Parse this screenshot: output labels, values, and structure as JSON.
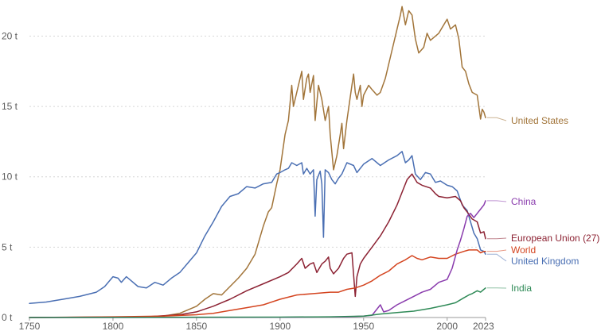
{
  "chart_data": {
    "type": "line",
    "title": "",
    "xlabel": "",
    "ylabel": "",
    "xlim": [
      1750,
      2023
    ],
    "ylim": [
      0,
      22
    ],
    "x_ticks": [
      {
        "value": 1750,
        "label": "1750"
      },
      {
        "value": 1800,
        "label": "1800"
      },
      {
        "value": 1850,
        "label": "1850"
      },
      {
        "value": 1900,
        "label": "1900"
      },
      {
        "value": 1950,
        "label": "1950"
      },
      {
        "value": 2000,
        "label": "2000"
      },
      {
        "value": 2023,
        "label": "2023"
      }
    ],
    "y_ticks": [
      {
        "value": 0,
        "label": "0 t"
      },
      {
        "value": 5,
        "label": "5 t"
      },
      {
        "value": 10,
        "label": "10 t"
      },
      {
        "value": 15,
        "label": "15 t"
      },
      {
        "value": 20,
        "label": "20 t"
      }
    ],
    "grid": "horizontal",
    "legend": "inline-right",
    "series": [
      {
        "name": "United States",
        "color": "#a2753a",
        "points": [
          [
            1800,
            0.02
          ],
          [
            1820,
            0.05
          ],
          [
            1830,
            0.1
          ],
          [
            1840,
            0.3
          ],
          [
            1850,
            0.8
          ],
          [
            1855,
            1.3
          ],
          [
            1860,
            1.7
          ],
          [
            1865,
            1.6
          ],
          [
            1870,
            2.2
          ],
          [
            1875,
            2.8
          ],
          [
            1880,
            3.5
          ],
          [
            1885,
            4.5
          ],
          [
            1890,
            6.5
          ],
          [
            1893,
            7.5
          ],
          [
            1895,
            7.8
          ],
          [
            1898,
            9.5
          ],
          [
            1900,
            10.5
          ],
          [
            1903,
            13
          ],
          [
            1905,
            14
          ],
          [
            1907,
            16.5
          ],
          [
            1908,
            15
          ],
          [
            1910,
            16
          ],
          [
            1913,
            17.5
          ],
          [
            1914,
            15.5
          ],
          [
            1916,
            17
          ],
          [
            1917,
            17.3
          ],
          [
            1918,
            16
          ],
          [
            1920,
            17.2
          ],
          [
            1921,
            14
          ],
          [
            1923,
            16.5
          ],
          [
            1925,
            15.5
          ],
          [
            1927,
            14
          ],
          [
            1929,
            15
          ],
          [
            1930,
            13
          ],
          [
            1932,
            10.5
          ],
          [
            1934,
            11.5
          ],
          [
            1936,
            13
          ],
          [
            1937,
            13.8
          ],
          [
            1938,
            12
          ],
          [
            1940,
            14
          ],
          [
            1943,
            16.5
          ],
          [
            1944,
            17.3
          ],
          [
            1945,
            16
          ],
          [
            1946,
            15.5
          ],
          [
            1948,
            16.5
          ],
          [
            1949,
            15
          ],
          [
            1950,
            15.8
          ],
          [
            1953,
            16.5
          ],
          [
            1955,
            16.2
          ],
          [
            1958,
            15.8
          ],
          [
            1960,
            16
          ],
          [
            1963,
            17
          ],
          [
            1966,
            18.5
          ],
          [
            1970,
            20.5
          ],
          [
            1972,
            21.5
          ],
          [
            1973,
            22.1
          ],
          [
            1975,
            20.8
          ],
          [
            1977,
            21.8
          ],
          [
            1979,
            21.5
          ],
          [
            1981,
            19.8
          ],
          [
            1983,
            18.8
          ],
          [
            1986,
            19.2
          ],
          [
            1988,
            20.2
          ],
          [
            1990,
            19.7
          ],
          [
            1995,
            20.2
          ],
          [
            1998,
            20.8
          ],
          [
            2000,
            21.2
          ],
          [
            2002,
            20.5
          ],
          [
            2005,
            20.8
          ],
          [
            2007,
            19.8
          ],
          [
            2009,
            17.8
          ],
          [
            2011,
            17.5
          ],
          [
            2013,
            16.6
          ],
          [
            2015,
            16
          ],
          [
            2018,
            15.8
          ],
          [
            2020,
            14.1
          ],
          [
            2021,
            14.8
          ],
          [
            2022,
            14.6
          ],
          [
            2023,
            14.2
          ]
        ]
      },
      {
        "name": "United Kingdom",
        "color": "#4a6fb3",
        "points": [
          [
            1750,
            1
          ],
          [
            1760,
            1.1
          ],
          [
            1770,
            1.3
          ],
          [
            1780,
            1.5
          ],
          [
            1790,
            1.8
          ],
          [
            1795,
            2.2
          ],
          [
            1800,
            2.9
          ],
          [
            1803,
            2.8
          ],
          [
            1805,
            2.5
          ],
          [
            1808,
            2.9
          ],
          [
            1810,
            2.7
          ],
          [
            1815,
            2.2
          ],
          [
            1820,
            2.1
          ],
          [
            1825,
            2.5
          ],
          [
            1830,
            2.3
          ],
          [
            1835,
            2.8
          ],
          [
            1840,
            3.2
          ],
          [
            1845,
            3.9
          ],
          [
            1850,
            4.6
          ],
          [
            1855,
            5.8
          ],
          [
            1860,
            6.8
          ],
          [
            1865,
            7.9
          ],
          [
            1870,
            8.6
          ],
          [
            1875,
            8.8
          ],
          [
            1880,
            9.3
          ],
          [
            1885,
            9.2
          ],
          [
            1890,
            9.5
          ],
          [
            1895,
            9.6
          ],
          [
            1898,
            10.2
          ],
          [
            1900,
            10.3
          ],
          [
            1903,
            10.5
          ],
          [
            1905,
            10.6
          ],
          [
            1907,
            11
          ],
          [
            1910,
            10.8
          ],
          [
            1913,
            11
          ],
          [
            1914,
            10.2
          ],
          [
            1916,
            10.6
          ],
          [
            1918,
            10.2
          ],
          [
            1920,
            10.5
          ],
          [
            1921,
            7.2
          ],
          [
            1922,
            9.8
          ],
          [
            1924,
            10.4
          ],
          [
            1925,
            9.5
          ],
          [
            1926,
            5.7
          ],
          [
            1927,
            10.5
          ],
          [
            1929,
            10.3
          ],
          [
            1931,
            9.8
          ],
          [
            1933,
            9.5
          ],
          [
            1935,
            9.9
          ],
          [
            1937,
            10.2
          ],
          [
            1940,
            11
          ],
          [
            1944,
            10.8
          ],
          [
            1946,
            10.3
          ],
          [
            1950,
            10.9
          ],
          [
            1955,
            11.3
          ],
          [
            1960,
            10.8
          ],
          [
            1965,
            11.2
          ],
          [
            1970,
            11.5
          ],
          [
            1973,
            11.8
          ],
          [
            1975,
            11
          ],
          [
            1977,
            11.2
          ],
          [
            1979,
            11.5
          ],
          [
            1981,
            10.2
          ],
          [
            1984,
            9.8
          ],
          [
            1987,
            10.3
          ],
          [
            1990,
            10.2
          ],
          [
            1993,
            9.6
          ],
          [
            1996,
            9.7
          ],
          [
            2000,
            9.4
          ],
          [
            2003,
            9.3
          ],
          [
            2006,
            9
          ],
          [
            2009,
            8
          ],
          [
            2012,
            7.6
          ],
          [
            2014,
            6.8
          ],
          [
            2016,
            6
          ],
          [
            2018,
            5.6
          ],
          [
            2020,
            4.8
          ],
          [
            2022,
            4.7
          ],
          [
            2023,
            4.5
          ]
        ]
      },
      {
        "name": "European Union (27)",
        "color": "#8c2233",
        "points": [
          [
            1750,
            0
          ],
          [
            1820,
            0.05
          ],
          [
            1840,
            0.2
          ],
          [
            1850,
            0.4
          ],
          [
            1860,
            0.8
          ],
          [
            1870,
            1.3
          ],
          [
            1880,
            1.9
          ],
          [
            1890,
            2.4
          ],
          [
            1900,
            2.9
          ],
          [
            1905,
            3.2
          ],
          [
            1910,
            3.8
          ],
          [
            1913,
            4.2
          ],
          [
            1915,
            3.5
          ],
          [
            1918,
            3.8
          ],
          [
            1920,
            3.9
          ],
          [
            1922,
            3.2
          ],
          [
            1925,
            3.8
          ],
          [
            1927,
            4
          ],
          [
            1929,
            4.3
          ],
          [
            1930,
            3.5
          ],
          [
            1932,
            3.1
          ],
          [
            1935,
            3.5
          ],
          [
            1938,
            4.2
          ],
          [
            1940,
            4.5
          ],
          [
            1943,
            4.6
          ],
          [
            1945,
            1.5
          ],
          [
            1946,
            2.9
          ],
          [
            1948,
            3.8
          ],
          [
            1950,
            4.2
          ],
          [
            1955,
            5
          ],
          [
            1960,
            5.8
          ],
          [
            1965,
            6.8
          ],
          [
            1970,
            8
          ],
          [
            1974,
            9.2
          ],
          [
            1976,
            9.8
          ],
          [
            1979,
            10.2
          ],
          [
            1982,
            9.6
          ],
          [
            1985,
            9.4
          ],
          [
            1990,
            9.2
          ],
          [
            1993,
            8.8
          ],
          [
            1995,
            8.6
          ],
          [
            2000,
            8.5
          ],
          [
            2005,
            8.6
          ],
          [
            2008,
            8.3
          ],
          [
            2010,
            7.8
          ],
          [
            2012,
            7.5
          ],
          [
            2015,
            7
          ],
          [
            2018,
            6.8
          ],
          [
            2020,
            6
          ],
          [
            2022,
            6.1
          ],
          [
            2023,
            5.6
          ]
        ]
      },
      {
        "name": "World",
        "color": "#d4441f",
        "points": [
          [
            1750,
            0
          ],
          [
            1800,
            0.05
          ],
          [
            1830,
            0.1
          ],
          [
            1850,
            0.2
          ],
          [
            1860,
            0.3
          ],
          [
            1870,
            0.5
          ],
          [
            1880,
            0.7
          ],
          [
            1890,
            0.9
          ],
          [
            1900,
            1.3
          ],
          [
            1910,
            1.6
          ],
          [
            1920,
            1.7
          ],
          [
            1930,
            1.8
          ],
          [
            1935,
            1.8
          ],
          [
            1940,
            2
          ],
          [
            1945,
            2.1
          ],
          [
            1950,
            2.3
          ],
          [
            1955,
            2.6
          ],
          [
            1960,
            3
          ],
          [
            1965,
            3.3
          ],
          [
            1970,
            3.8
          ],
          [
            1975,
            4.1
          ],
          [
            1979,
            4.4
          ],
          [
            1982,
            4.2
          ],
          [
            1985,
            4.1
          ],
          [
            1990,
            4.3
          ],
          [
            1995,
            4.2
          ],
          [
            2000,
            4.2
          ],
          [
            2005,
            4.5
          ],
          [
            2010,
            4.7
          ],
          [
            2013,
            4.8
          ],
          [
            2015,
            4.8
          ],
          [
            2018,
            4.8
          ],
          [
            2020,
            4.6
          ],
          [
            2022,
            4.7
          ],
          [
            2023,
            4.7
          ]
        ]
      },
      {
        "name": "China",
        "color": "#8a3cad",
        "points": [
          [
            1750,
            0
          ],
          [
            1900,
            0.01
          ],
          [
            1940,
            0.05
          ],
          [
            1950,
            0.1
          ],
          [
            1955,
            0.15
          ],
          [
            1958,
            0.6
          ],
          [
            1960,
            0.9
          ],
          [
            1962,
            0.4
          ],
          [
            1965,
            0.5
          ],
          [
            1970,
            0.9
          ],
          [
            1975,
            1.2
          ],
          [
            1980,
            1.5
          ],
          [
            1985,
            1.8
          ],
          [
            1990,
            2
          ],
          [
            1995,
            2.5
          ],
          [
            2000,
            2.7
          ],
          [
            2003,
            3.5
          ],
          [
            2006,
            4.8
          ],
          [
            2008,
            5.5
          ],
          [
            2010,
            6.3
          ],
          [
            2012,
            7.2
          ],
          [
            2014,
            7.4
          ],
          [
            2016,
            7.1
          ],
          [
            2018,
            7.4
          ],
          [
            2020,
            7.7
          ],
          [
            2022,
            8
          ],
          [
            2023,
            8.3
          ]
        ]
      },
      {
        "name": "India",
        "color": "#2f8a57",
        "points": [
          [
            1750,
            0
          ],
          [
            1900,
            0.03
          ],
          [
            1930,
            0.05
          ],
          [
            1950,
            0.1
          ],
          [
            1960,
            0.25
          ],
          [
            1970,
            0.35
          ],
          [
            1980,
            0.45
          ],
          [
            1990,
            0.65
          ],
          [
            2000,
            0.9
          ],
          [
            2005,
            1.05
          ],
          [
            2010,
            1.4
          ],
          [
            2013,
            1.6
          ],
          [
            2015,
            1.7
          ],
          [
            2018,
            1.9
          ],
          [
            2020,
            1.8
          ],
          [
            2022,
            2
          ],
          [
            2023,
            2.1
          ]
        ]
      }
    ]
  }
}
